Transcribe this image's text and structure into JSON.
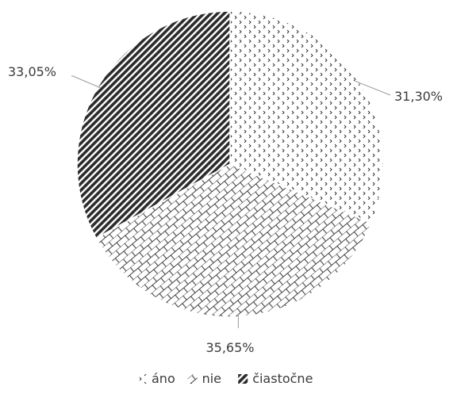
{
  "chart_data": {
    "type": "pie",
    "title": "",
    "categories": [
      "áno",
      "nie",
      "čiastočne"
    ],
    "values": [
      31.3,
      35.65,
      33.05
    ],
    "data_labels": [
      "31,30%",
      "35,65%",
      "33,05%"
    ],
    "start_angle_deg": 0,
    "direction": "clockwise",
    "legend": {
      "placement": "bottom",
      "entries": [
        "áno",
        "nie",
        "čiastočne"
      ]
    },
    "patterns": [
      "dotted-arrow",
      "brick",
      "dark-diagonal"
    ]
  }
}
